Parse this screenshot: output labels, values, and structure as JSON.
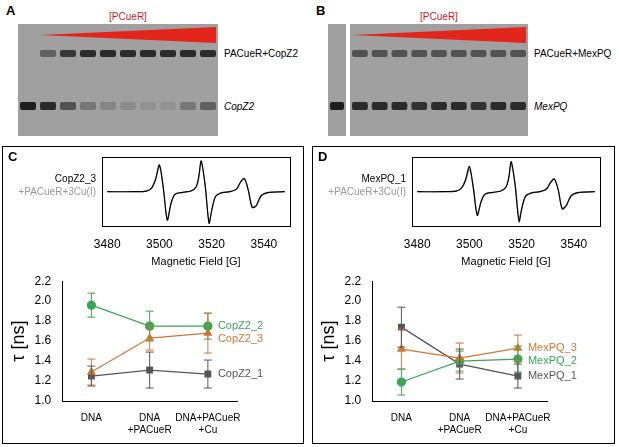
{
  "gels": [
    {
      "panel": "A",
      "gradient_label": "[PCueR]",
      "upper_band_label": "PACueR+CopZ2",
      "lower_band_label": "CopZ2"
    },
    {
      "panel": "B",
      "gradient_label": "[PCueR]",
      "upper_band_label": "PACueR+MexPQ",
      "lower_band_label": "MexPQ"
    }
  ],
  "chart_data": [
    {
      "panel": "C",
      "type": "line",
      "xlabel": "Magnetic Field [G]",
      "x": [
        3480,
        3490,
        3495,
        3497,
        3498.5,
        3500,
        3501.5,
        3503,
        3504.5,
        3506,
        3509,
        3512,
        3514,
        3515,
        3516,
        3517.5,
        3519,
        3520,
        3521.5,
        3524,
        3527,
        3529.5,
        3531,
        3532.5,
        3534,
        3535.5,
        3537,
        3539,
        3542,
        3548
      ],
      "xlim": [
        3478,
        3550
      ],
      "xticks": [
        3480,
        3500,
        3520,
        3540
      ],
      "ylim": [
        -1.1,
        1.1
      ],
      "tick_labels": "x",
      "legend": "left",
      "series": [
        {
          "name": "CopZ2_3",
          "color": "#000000",
          "values": [
            0,
            0,
            0.02,
            0.12,
            0.4,
            0.85,
            0.1,
            -0.9,
            -0.35,
            -0.08,
            -0.02,
            0.02,
            0.15,
            0.45,
            0.98,
            0.2,
            -1.0,
            -0.6,
            -0.15,
            -0.03,
            0,
            0.08,
            0.3,
            0.42,
            0.05,
            -0.5,
            -0.45,
            -0.12,
            -0.02,
            0
          ]
        },
        {
          "name": "+PACueR+3Cu(I)",
          "color": "#999999",
          "values": [
            0,
            0,
            0.02,
            0.1,
            0.35,
            0.8,
            0.12,
            -0.85,
            -0.35,
            -0.08,
            -0.02,
            0.02,
            0.13,
            0.4,
            0.92,
            0.22,
            -0.95,
            -0.6,
            -0.15,
            -0.03,
            0,
            0.08,
            0.28,
            0.4,
            0.08,
            -0.45,
            -0.45,
            -0.14,
            -0.02,
            0
          ]
        }
      ]
    },
    {
      "type": "line",
      "ylabel": "τ [ns]",
      "categories": [
        "DNA",
        "DNA+PACueR",
        "DNA+PACueR+Cu"
      ],
      "ylim": [
        1.0,
        2.2
      ],
      "yticks": [
        {
          "value": 1.0,
          "label": "1.0"
        },
        1.2,
        1.4,
        1.6,
        1.8,
        {
          "value": 2.0,
          "label": "2.0"
        },
        2.2
      ],
      "series": [
        {
          "name": "CopZ2_2",
          "color": "#3aa655",
          "marker": "circle",
          "values": [
            1.96,
            1.75,
            1.75
          ],
          "errors": [
            0.12,
            0.15,
            0.13
          ]
        },
        {
          "name": "CopZ2_3",
          "color": "#d2772e",
          "marker": "triangle",
          "values": [
            1.29,
            1.63,
            1.68
          ],
          "errors": [
            0.13,
            0.12,
            0.2
          ]
        },
        {
          "name": "CopZ2_1",
          "color": "#555555",
          "marker": "square",
          "values": [
            1.25,
            1.31,
            1.27
          ],
          "errors": [
            0.1,
            0.18,
            0.14
          ]
        }
      ]
    },
    {
      "panel": "D",
      "type": "line",
      "xlabel": "Magnetic Field [G]",
      "x": [
        3480,
        3490,
        3495,
        3497,
        3498.5,
        3500,
        3501.5,
        3503,
        3504.5,
        3506,
        3509,
        3512,
        3514,
        3515,
        3516,
        3517.5,
        3519,
        3520,
        3521.5,
        3524,
        3527,
        3529.5,
        3531,
        3532.5,
        3534,
        3535.5,
        3537,
        3539,
        3542,
        3548
      ],
      "xlim": [
        3478,
        3550
      ],
      "xticks": [
        3480,
        3500,
        3520,
        3540
      ],
      "ylim": [
        -1.1,
        1.1
      ],
      "tick_labels": "x",
      "legend": "left",
      "series": [
        {
          "name": "MexPQ_1",
          "color": "#000000",
          "values": [
            0,
            0,
            0.02,
            0.12,
            0.38,
            0.8,
            0.1,
            -0.75,
            -0.3,
            -0.07,
            -0.02,
            0.02,
            0.15,
            0.42,
            0.95,
            0.2,
            -0.95,
            -0.55,
            -0.14,
            -0.03,
            0,
            0.08,
            0.28,
            0.4,
            0.05,
            -0.55,
            -0.45,
            -0.12,
            -0.02,
            0
          ]
        },
        {
          "name": "+PACueR+3Cu(I)",
          "color": "#999999",
          "values": [
            0,
            0,
            0.03,
            0.12,
            0.33,
            0.7,
            0.15,
            -0.7,
            -0.33,
            -0.09,
            -0.02,
            0.02,
            0.15,
            0.4,
            0.85,
            0.25,
            -0.85,
            -0.55,
            -0.16,
            -0.04,
            0,
            0.1,
            0.3,
            0.42,
            0.1,
            -0.5,
            -0.45,
            -0.15,
            -0.03,
            0
          ]
        }
      ]
    },
    {
      "type": "line",
      "ylabel": "τ [ns]",
      "categories": [
        "DNA",
        "DNA+PACueR",
        "DNA+PACueR+Cu"
      ],
      "ylim": [
        1.0,
        2.2
      ],
      "yticks": [
        {
          "value": 1.0,
          "label": "1.0"
        },
        1.2,
        1.4,
        1.6,
        1.8,
        {
          "value": 2.0,
          "label": "2.0"
        },
        2.2
      ],
      "series": [
        {
          "name": "MexPQ_3",
          "color": "#d2772e",
          "marker": "triangle",
          "values": [
            1.52,
            1.43,
            1.53
          ],
          "errors": [
            0.2,
            0.15,
            0.13
          ]
        },
        {
          "name": "MexPQ_2",
          "color": "#3aa655",
          "marker": "circle",
          "values": [
            1.19,
            1.4,
            1.42
          ],
          "errors": [
            0.13,
            0.1,
            0.13
          ]
        },
        {
          "name": "MexPQ_1",
          "color": "#555555",
          "marker": "square",
          "values": [
            1.74,
            1.37,
            1.25
          ],
          "errors": [
            0.2,
            0.15,
            0.12
          ]
        }
      ]
    }
  ]
}
